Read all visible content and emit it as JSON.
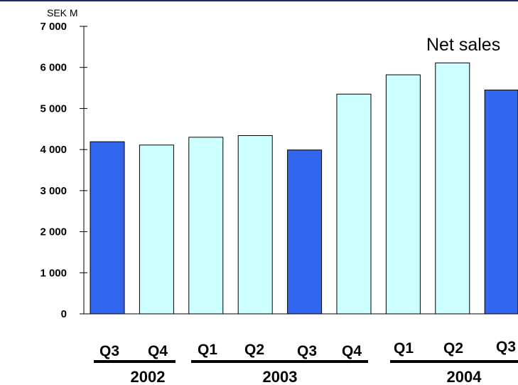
{
  "chart_data": {
    "type": "bar",
    "title": "Net sales",
    "ylabel": "SEK M",
    "xlabel": "",
    "ylim": [
      0,
      7000
    ],
    "yticks": [
      0,
      1000,
      2000,
      3000,
      4000,
      5000,
      6000,
      7000
    ],
    "ytick_labels": [
      "0",
      "1 000",
      "2 000",
      "3 000",
      "4 000",
      "5 000",
      "6 000",
      "7 000"
    ],
    "categories": [
      "Q3",
      "Q4",
      "Q1",
      "Q2",
      "Q3",
      "Q4",
      "Q1",
      "Q2",
      "Q3"
    ],
    "years": [
      {
        "label": "2002",
        "span": [
          0,
          1
        ]
      },
      {
        "label": "2003",
        "span": [
          2,
          5
        ]
      },
      {
        "label": "2004",
        "span": [
          6,
          8
        ]
      }
    ],
    "values": [
      4190,
      4110,
      4300,
      4340,
      3990,
      5350,
      5820,
      6110,
      5450
    ],
    "highlight": [
      true,
      false,
      false,
      false,
      true,
      false,
      false,
      false,
      true
    ],
    "colors": {
      "highlight_fill": "#3366ee",
      "normal_fill": "#ccffff",
      "bar_stroke": "#000000",
      "top_rule": "#1f2a6e"
    },
    "grid": false,
    "legend": "none"
  }
}
